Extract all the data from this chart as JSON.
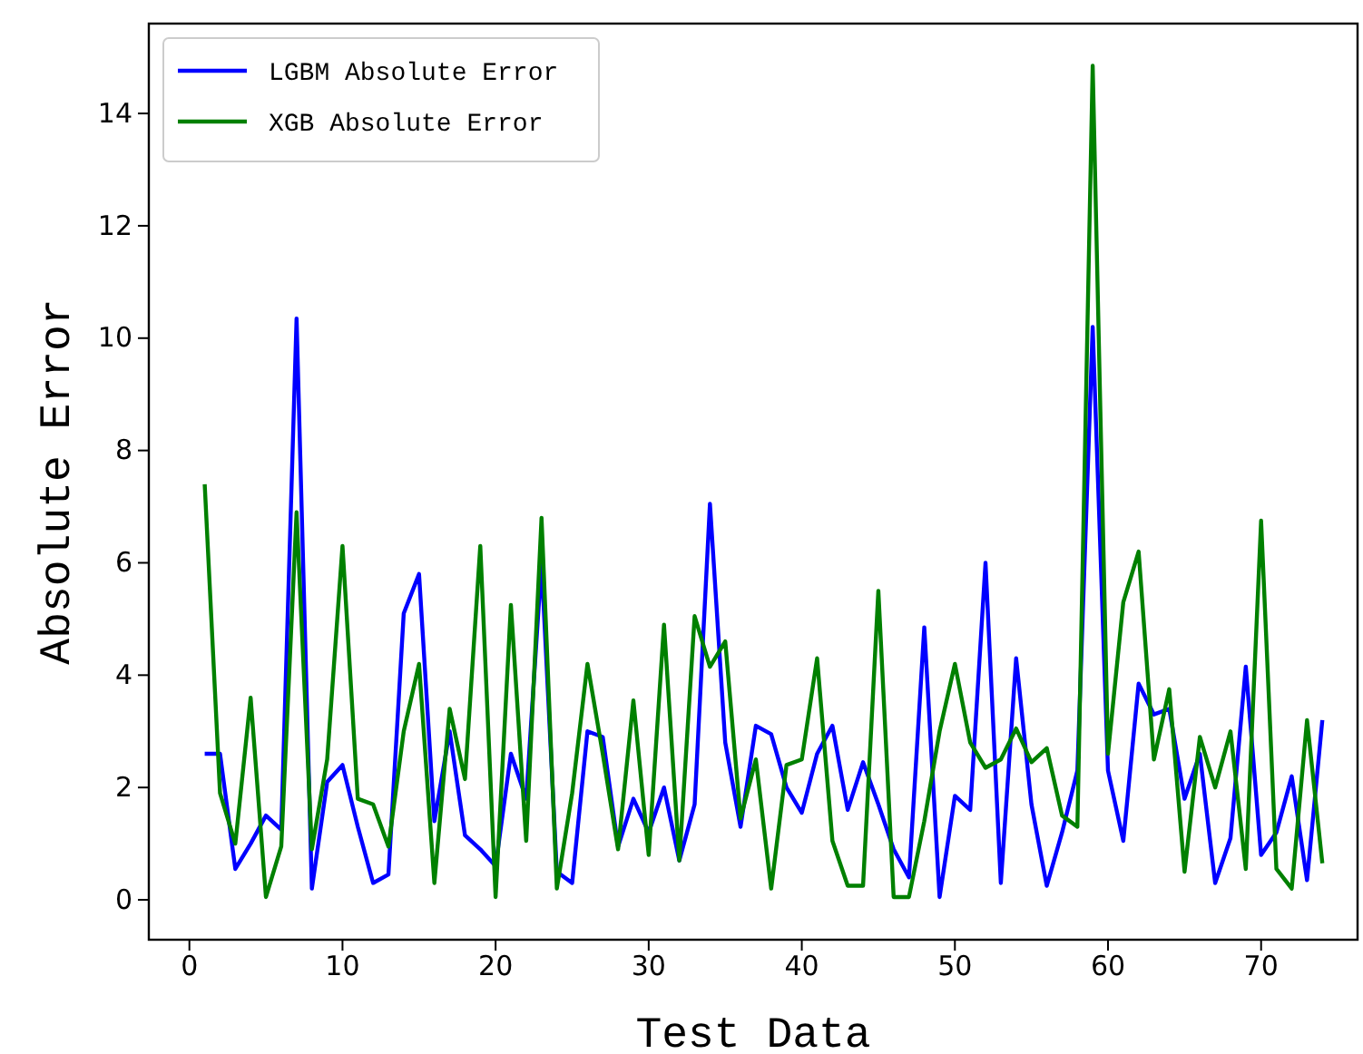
{
  "chart_data": {
    "type": "line",
    "xlabel": "Test Data",
    "ylabel": "Absolute Error",
    "x": [
      1,
      2,
      3,
      4,
      5,
      6,
      7,
      8,
      9,
      10,
      11,
      12,
      13,
      14,
      15,
      16,
      17,
      18,
      19,
      20,
      21,
      22,
      23,
      24,
      25,
      26,
      27,
      28,
      29,
      30,
      31,
      32,
      33,
      34,
      35,
      36,
      37,
      38,
      39,
      40,
      41,
      42,
      43,
      44,
      45,
      46,
      47,
      48,
      49,
      50,
      51,
      52,
      53,
      54,
      55,
      56,
      57,
      58,
      59,
      60,
      61,
      62,
      63,
      64,
      65,
      66,
      67,
      68,
      69,
      70,
      71,
      72,
      73,
      74
    ],
    "series": [
      {
        "name": "LGBM Absolute Error",
        "color": "#0000ff",
        "values": [
          2.6,
          2.6,
          0.55,
          1.0,
          1.5,
          1.25,
          10.35,
          0.2,
          2.1,
          2.4,
          1.3,
          0.3,
          0.45,
          5.1,
          5.8,
          1.4,
          3.0,
          1.15,
          0.9,
          0.6,
          2.6,
          1.8,
          6.0,
          0.5,
          0.3,
          3.0,
          2.9,
          0.95,
          1.8,
          1.2,
          2.0,
          0.7,
          1.7,
          7.05,
          2.8,
          1.3,
          3.1,
          2.95,
          2.0,
          1.55,
          2.6,
          3.1,
          1.6,
          2.45,
          1.7,
          0.9,
          0.4,
          4.85,
          0.05,
          1.85,
          1.6,
          6.0,
          0.3,
          4.3,
          1.7,
          0.25,
          1.2,
          2.3,
          10.2,
          2.3,
          1.05,
          3.85,
          3.3,
          3.4,
          1.8,
          2.6,
          0.3,
          1.1,
          4.15,
          0.8,
          1.2,
          2.2,
          0.35,
          3.2
        ]
      },
      {
        "name": "XGB Absolute Error",
        "color": "#008000",
        "values": [
          7.4,
          1.9,
          1.0,
          3.6,
          0.05,
          0.95,
          6.9,
          0.9,
          2.5,
          6.3,
          1.8,
          1.7,
          0.95,
          3.0,
          4.2,
          0.3,
          3.4,
          2.15,
          6.3,
          0.05,
          5.25,
          1.05,
          6.8,
          0.2,
          1.9,
          4.2,
          2.6,
          0.9,
          3.55,
          0.8,
          4.9,
          0.7,
          5.05,
          4.15,
          4.6,
          1.45,
          2.5,
          0.2,
          2.4,
          2.5,
          4.3,
          1.05,
          0.25,
          0.25,
          5.5,
          0.05,
          0.05,
          1.4,
          3.0,
          4.2,
          2.8,
          2.35,
          2.5,
          3.05,
          2.45,
          2.7,
          1.5,
          1.3,
          14.85,
          2.6,
          5.3,
          6.2,
          2.5,
          3.75,
          0.5,
          2.9,
          2.0,
          3.0,
          0.55,
          6.75,
          0.55,
          0.2,
          3.2,
          0.65
        ]
      }
    ],
    "xlim": [
      -2.65,
      76.3
    ],
    "xticks": [
      0,
      10,
      20,
      30,
      40,
      50,
      60,
      70
    ],
    "ylim": [
      -0.71,
      15.6
    ],
    "yticks": [
      0,
      2,
      4,
      6,
      8,
      10,
      12,
      14
    ],
    "legend": "top left",
    "grid": false
  }
}
